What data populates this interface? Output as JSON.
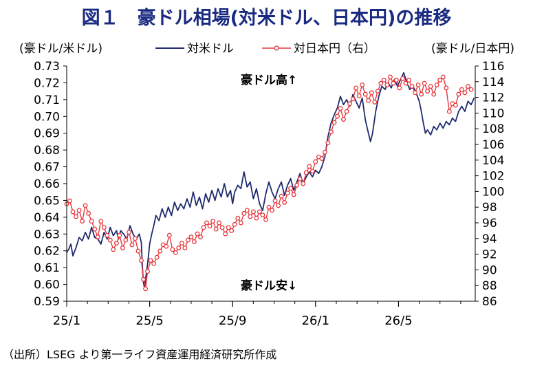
{
  "title": "図１　豪ドル相場(対米ドル、日本円)の推移",
  "source": "（出所）LSEG より第一ライフ資産運用経済研究所作成",
  "chart_data": {
    "type": "line",
    "left_axis_label": "(豪ドル/米ドル)",
    "right_axis_label": "(豪ドル/日本円)",
    "left_ylim": [
      0.59,
      0.73
    ],
    "left_ticks": [
      "0.59",
      "0.60",
      "0.61",
      "0.62",
      "0.63",
      "0.64",
      "0.65",
      "0.66",
      "0.67",
      "0.68",
      "0.69",
      "0.70",
      "0.71",
      "0.72",
      "0.73"
    ],
    "right_ylim": [
      86,
      116
    ],
    "right_ticks": [
      "86",
      "88",
      "90",
      "92",
      "94",
      "96",
      "98",
      "100",
      "102",
      "104",
      "106",
      "108",
      "110",
      "112",
      "114",
      "116"
    ],
    "x_ticks": [
      "25/1",
      "25/5",
      "25/9",
      "26/1",
      "26/5"
    ],
    "x_tick_months": [
      0,
      4,
      8,
      12,
      16
    ],
    "x_range_months": [
      0,
      19.7
    ],
    "annotations": {
      "high": "豪ドル高",
      "high_arrow": "↑",
      "low": "豪ドル安",
      "low_arrow": "↓"
    },
    "series": [
      {
        "name": "対米ドル",
        "axis": "left",
        "color": "#1f2a6e",
        "points": [
          [
            0.0,
            0.619
          ],
          [
            0.1,
            0.621
          ],
          [
            0.2,
            0.624
          ],
          [
            0.3,
            0.617
          ],
          [
            0.45,
            0.622
          ],
          [
            0.6,
            0.628
          ],
          [
            0.75,
            0.626
          ],
          [
            0.9,
            0.631
          ],
          [
            1.05,
            0.627
          ],
          [
            1.2,
            0.634
          ],
          [
            1.35,
            0.628
          ],
          [
            1.5,
            0.627
          ],
          [
            1.65,
            0.624
          ],
          [
            1.8,
            0.631
          ],
          [
            1.95,
            0.627
          ],
          [
            2.1,
            0.634
          ],
          [
            2.25,
            0.629
          ],
          [
            2.4,
            0.632
          ],
          [
            2.5,
            0.627
          ],
          [
            2.6,
            0.632
          ],
          [
            2.75,
            0.63
          ],
          [
            2.9,
            0.627
          ],
          [
            3.05,
            0.635
          ],
          [
            3.2,
            0.63
          ],
          [
            3.35,
            0.627
          ],
          [
            3.5,
            0.63
          ],
          [
            3.6,
            0.625
          ],
          [
            3.65,
            0.61
          ],
          [
            3.7,
            0.601
          ],
          [
            3.75,
            0.598
          ],
          [
            3.8,
            0.603
          ],
          [
            3.9,
            0.612
          ],
          [
            4.0,
            0.624
          ],
          [
            4.1,
            0.63
          ],
          [
            4.2,
            0.635
          ],
          [
            4.3,
            0.641
          ],
          [
            4.45,
            0.638
          ],
          [
            4.6,
            0.645
          ],
          [
            4.75,
            0.64
          ],
          [
            4.9,
            0.646
          ],
          [
            5.05,
            0.641
          ],
          [
            5.2,
            0.649
          ],
          [
            5.35,
            0.644
          ],
          [
            5.5,
            0.648
          ],
          [
            5.65,
            0.645
          ],
          [
            5.8,
            0.651
          ],
          [
            5.95,
            0.646
          ],
          [
            6.1,
            0.655
          ],
          [
            6.25,
            0.647
          ],
          [
            6.4,
            0.652
          ],
          [
            6.55,
            0.645
          ],
          [
            6.7,
            0.654
          ],
          [
            6.85,
            0.649
          ],
          [
            7.0,
            0.656
          ],
          [
            7.15,
            0.65
          ],
          [
            7.3,
            0.657
          ],
          [
            7.45,
            0.652
          ],
          [
            7.6,
            0.66
          ],
          [
            7.75,
            0.652
          ],
          [
            7.9,
            0.656
          ],
          [
            8.0,
            0.648
          ],
          [
            8.1,
            0.655
          ],
          [
            8.25,
            0.659
          ],
          [
            8.4,
            0.657
          ],
          [
            8.55,
            0.667
          ],
          [
            8.7,
            0.658
          ],
          [
            8.85,
            0.661
          ],
          [
            9.0,
            0.651
          ],
          [
            9.15,
            0.657
          ],
          [
            9.3,
            0.648
          ],
          [
            9.45,
            0.644
          ],
          [
            9.6,
            0.654
          ],
          [
            9.75,
            0.661
          ],
          [
            9.9,
            0.655
          ],
          [
            10.05,
            0.651
          ],
          [
            10.2,
            0.657
          ],
          [
            10.35,
            0.661
          ],
          [
            10.5,
            0.653
          ],
          [
            10.65,
            0.659
          ],
          [
            10.8,
            0.663
          ],
          [
            10.95,
            0.656
          ],
          [
            11.1,
            0.661
          ],
          [
            11.25,
            0.666
          ],
          [
            11.4,
            0.66
          ],
          [
            11.55,
            0.664
          ],
          [
            11.7,
            0.667
          ],
          [
            11.85,
            0.664
          ],
          [
            12.0,
            0.668
          ],
          [
            12.15,
            0.666
          ],
          [
            12.3,
            0.67
          ],
          [
            12.45,
            0.676
          ],
          [
            12.6,
            0.688
          ],
          [
            12.75,
            0.696
          ],
          [
            12.9,
            0.701
          ],
          [
            13.05,
            0.705
          ],
          [
            13.2,
            0.712
          ],
          [
            13.35,
            0.707
          ],
          [
            13.5,
            0.71
          ],
          [
            13.65,
            0.706
          ],
          [
            13.8,
            0.713
          ],
          [
            13.95,
            0.709
          ],
          [
            14.1,
            0.705
          ],
          [
            14.25,
            0.711
          ],
          [
            14.4,
            0.698
          ],
          [
            14.55,
            0.69
          ],
          [
            14.65,
            0.685
          ],
          [
            14.75,
            0.69
          ],
          [
            14.9,
            0.703
          ],
          [
            15.05,
            0.712
          ],
          [
            15.2,
            0.718
          ],
          [
            15.35,
            0.716
          ],
          [
            15.5,
            0.72
          ],
          [
            15.65,
            0.717
          ],
          [
            15.8,
            0.722
          ],
          [
            15.95,
            0.718
          ],
          [
            16.1,
            0.722
          ],
          [
            16.25,
            0.726
          ],
          [
            16.4,
            0.72
          ],
          [
            16.55,
            0.716
          ],
          [
            16.7,
            0.718
          ],
          [
            16.85,
            0.714
          ],
          [
            17.0,
            0.709
          ],
          [
            17.1,
            0.703
          ],
          [
            17.2,
            0.696
          ],
          [
            17.3,
            0.69
          ],
          [
            17.4,
            0.692
          ],
          [
            17.55,
            0.689
          ],
          [
            17.7,
            0.694
          ],
          [
            17.85,
            0.692
          ],
          [
            18.0,
            0.696
          ],
          [
            18.15,
            0.693
          ],
          [
            18.3,
            0.697
          ],
          [
            18.45,
            0.695
          ],
          [
            18.6,
            0.699
          ],
          [
            18.75,
            0.697
          ],
          [
            18.9,
            0.703
          ],
          [
            19.05,
            0.706
          ],
          [
            19.2,
            0.703
          ],
          [
            19.35,
            0.709
          ],
          [
            19.5,
            0.707
          ],
          [
            19.65,
            0.711
          ]
        ]
      },
      {
        "name": "対日本円（右）",
        "axis": "right",
        "color": "#e8383d",
        "marker_fill": "#ffffff",
        "points": [
          [
            0.0,
            98.4
          ],
          [
            0.15,
            98.8
          ],
          [
            0.3,
            97.4
          ],
          [
            0.45,
            96.8
          ],
          [
            0.6,
            97.6
          ],
          [
            0.75,
            96.2
          ],
          [
            0.9,
            98.2
          ],
          [
            1.05,
            97.2
          ],
          [
            1.2,
            96.2
          ],
          [
            1.35,
            95.2
          ],
          [
            1.5,
            94.2
          ],
          [
            1.65,
            96.2
          ],
          [
            1.8,
            95.4
          ],
          [
            1.95,
            94.4
          ],
          [
            2.1,
            93.8
          ],
          [
            2.25,
            92.6
          ],
          [
            2.4,
            93.4
          ],
          [
            2.55,
            94.4
          ],
          [
            2.7,
            92.8
          ],
          [
            2.85,
            93.8
          ],
          [
            3.0,
            94.8
          ],
          [
            3.15,
            93.2
          ],
          [
            3.3,
            94.0
          ],
          [
            3.45,
            92.4
          ],
          [
            3.6,
            91.2
          ],
          [
            3.7,
            88.8
          ],
          [
            3.8,
            87.6
          ],
          [
            3.9,
            89.8
          ],
          [
            4.05,
            91.2
          ],
          [
            4.2,
            90.8
          ],
          [
            4.35,
            91.6
          ],
          [
            4.5,
            92.4
          ],
          [
            4.65,
            93.2
          ],
          [
            4.8,
            93.0
          ],
          [
            4.95,
            94.4
          ],
          [
            5.1,
            92.6
          ],
          [
            5.25,
            92.2
          ],
          [
            5.4,
            92.8
          ],
          [
            5.55,
            93.4
          ],
          [
            5.7,
            92.8
          ],
          [
            5.85,
            93.8
          ],
          [
            6.0,
            94.2
          ],
          [
            6.15,
            93.6
          ],
          [
            6.3,
            94.6
          ],
          [
            6.45,
            94.2
          ],
          [
            6.6,
            95.4
          ],
          [
            6.75,
            96.0
          ],
          [
            6.9,
            95.6
          ],
          [
            7.05,
            96.2
          ],
          [
            7.2,
            95.2
          ],
          [
            7.35,
            96.0
          ],
          [
            7.5,
            95.4
          ],
          [
            7.65,
            94.6
          ],
          [
            7.8,
            95.4
          ],
          [
            7.95,
            95.0
          ],
          [
            8.1,
            95.8
          ],
          [
            8.25,
            96.6
          ],
          [
            8.4,
            96.0
          ],
          [
            8.55,
            97.2
          ],
          [
            8.7,
            97.6
          ],
          [
            8.85,
            96.8
          ],
          [
            9.0,
            97.4
          ],
          [
            9.15,
            96.6
          ],
          [
            9.3,
            97.4
          ],
          [
            9.45,
            97.0
          ],
          [
            9.6,
            96.4
          ],
          [
            9.75,
            98.0
          ],
          [
            9.9,
            97.6
          ],
          [
            10.05,
            98.8
          ],
          [
            10.2,
            98.2
          ],
          [
            10.35,
            99.4
          ],
          [
            10.5,
            98.6
          ],
          [
            10.65,
            99.8
          ],
          [
            10.8,
            100.4
          ],
          [
            10.95,
            99.6
          ],
          [
            11.1,
            100.8
          ],
          [
            11.25,
            101.6
          ],
          [
            11.4,
            101.0
          ],
          [
            11.55,
            102.4
          ],
          [
            11.7,
            103.2
          ],
          [
            11.85,
            102.6
          ],
          [
            12.0,
            103.8
          ],
          [
            12.15,
            104.4
          ],
          [
            12.3,
            104.2
          ],
          [
            12.45,
            105.0
          ],
          [
            12.6,
            106.2
          ],
          [
            12.75,
            107.6
          ],
          [
            12.9,
            108.8
          ],
          [
            13.05,
            109.6
          ],
          [
            13.2,
            110.6
          ],
          [
            13.35,
            109.2
          ],
          [
            13.5,
            110.2
          ],
          [
            13.65,
            111.2
          ],
          [
            13.8,
            111.8
          ],
          [
            13.95,
            113.2
          ],
          [
            14.1,
            112.2
          ],
          [
            14.25,
            113.6
          ],
          [
            14.4,
            112.4
          ],
          [
            14.55,
            111.6
          ],
          [
            14.7,
            112.6
          ],
          [
            14.85,
            111.4
          ],
          [
            15.0,
            112.8
          ],
          [
            15.15,
            113.8
          ],
          [
            15.3,
            114.2
          ],
          [
            15.45,
            113.6
          ],
          [
            15.6,
            114.6
          ],
          [
            15.75,
            113.8
          ],
          [
            15.9,
            114.2
          ],
          [
            16.05,
            113.2
          ],
          [
            16.2,
            114.4
          ],
          [
            16.35,
            113.8
          ],
          [
            16.5,
            114.2
          ],
          [
            16.65,
            113.4
          ],
          [
            16.8,
            112.6
          ],
          [
            16.95,
            113.6
          ],
          [
            17.1,
            112.4
          ],
          [
            17.25,
            113.8
          ],
          [
            17.4,
            112.8
          ],
          [
            17.55,
            113.4
          ],
          [
            17.7,
            112.4
          ],
          [
            17.85,
            113.6
          ],
          [
            18.0,
            114.2
          ],
          [
            18.15,
            114.6
          ],
          [
            18.3,
            113.2
          ],
          [
            18.45,
            110.2
          ],
          [
            18.6,
            111.2
          ],
          [
            18.75,
            111.0
          ],
          [
            18.9,
            112.4
          ],
          [
            19.05,
            113.0
          ],
          [
            19.2,
            112.6
          ],
          [
            19.35,
            113.4
          ],
          [
            19.5,
            113.0
          ]
        ]
      }
    ]
  }
}
